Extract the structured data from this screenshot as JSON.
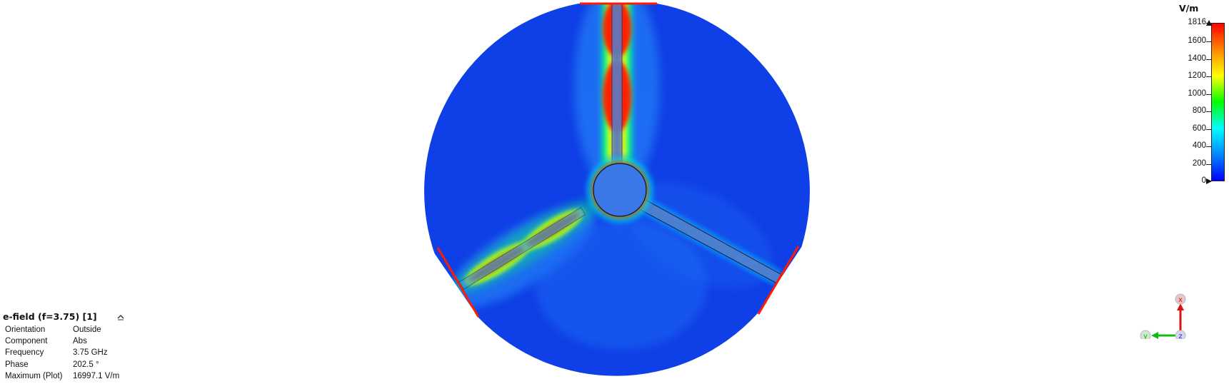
{
  "plot": {
    "title": "e-field (f=3.75) [1]",
    "properties": [
      {
        "key": "Orientation",
        "value": "Outside"
      },
      {
        "key": "Component",
        "value": "Abs"
      },
      {
        "key": "Frequency",
        "value": "3.75 GHz"
      },
      {
        "key": "Phase",
        "value": "202.5 °"
      },
      {
        "key": "Maximum (Plot)",
        "value": "16997.1 V/m"
      }
    ]
  },
  "legend": {
    "unit": "V/m",
    "max_label": "1816",
    "ticks": [
      "1600",
      "1400",
      "1200",
      "1000",
      "800",
      "600",
      "400",
      "200",
      "0"
    ],
    "min": 0,
    "max": 1816,
    "colors": [
      "#ff0000",
      "#ff8800",
      "#ffff00",
      "#00ff00",
      "#00ffff",
      "#0088ff",
      "#0000ff"
    ]
  },
  "axes": {
    "x": "x",
    "y": "y",
    "z": "z"
  },
  "field": {
    "background_color": "#0f3fe6",
    "hot_color": "#ff1a00"
  }
}
